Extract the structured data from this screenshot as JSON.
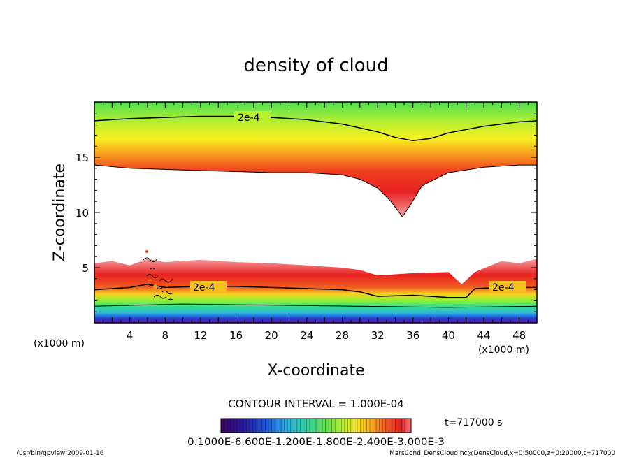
{
  "chart_data": {
    "type": "heatmap",
    "title": "density of cloud",
    "xlabel": "X-coordinate",
    "ylabel": "Z-coordinate",
    "x_unit": "(x1000 m)",
    "z_unit": "(x1000 m)",
    "xlim": [
      0,
      50
    ],
    "ylim": [
      0,
      20
    ],
    "x_ticks": [
      4,
      8,
      12,
      16,
      20,
      24,
      28,
      32,
      36,
      40,
      44,
      48
    ],
    "y_ticks": [
      5,
      10,
      15
    ],
    "contour_labels": [
      "2e-4",
      "2e-4",
      "2e-4"
    ],
    "contour_interval": "CONTOUR INTERVAL = 1.000E-04",
    "time": "t=717000 s",
    "colorbar_labels_text": "0.1000E-6.600E-1.200E-1.800E-2.400E-3.000E-3",
    "colorbar_values": [
      0.1,
      0.6,
      1.2,
      1.8,
      2.4,
      3.0
    ],
    "colorbar_unit": "E-03",
    "colorbar_colors": [
      "#3a0060",
      "#2a1aa0",
      "#2060e0",
      "#30b0e0",
      "#30d0a0",
      "#50e050",
      "#b0f030",
      "#f0f020",
      "#f8b020",
      "#f06020",
      "#e82020",
      "#f08080"
    ],
    "upper_band_top": [
      [
        0,
        18.3
      ],
      [
        4,
        18.5
      ],
      [
        8,
        18.6
      ],
      [
        12,
        18.7
      ],
      [
        16,
        18.7
      ],
      [
        20,
        18.6
      ],
      [
        24,
        18.4
      ],
      [
        28,
        18.0
      ],
      [
        32,
        17.3
      ],
      [
        34,
        16.8
      ],
      [
        36,
        16.5
      ],
      [
        38,
        16.7
      ],
      [
        40,
        17.2
      ],
      [
        44,
        17.8
      ],
      [
        48,
        18.2
      ],
      [
        50,
        18.3
      ]
    ],
    "upper_band_bottom": [
      [
        0,
        14.3
      ],
      [
        4,
        14.0
      ],
      [
        8,
        13.9
      ],
      [
        12,
        13.8
      ],
      [
        16,
        13.7
      ],
      [
        20,
        13.6
      ],
      [
        24,
        13.6
      ],
      [
        28,
        13.4
      ],
      [
        30,
        13.0
      ],
      [
        32,
        12.2
      ],
      [
        33.5,
        11.0
      ],
      [
        34.8,
        9.6
      ],
      [
        35.8,
        10.8
      ],
      [
        37,
        12.4
      ],
      [
        40,
        13.6
      ],
      [
        44,
        14.1
      ],
      [
        48,
        14.3
      ],
      [
        50,
        14.3
      ]
    ],
    "lower_band_top": [
      [
        0,
        5.4
      ],
      [
        2,
        5.6
      ],
      [
        4,
        5.2
      ],
      [
        6,
        5.8
      ],
      [
        8,
        5.5
      ],
      [
        10,
        5.6
      ],
      [
        12,
        5.7
      ],
      [
        16,
        5.5
      ],
      [
        20,
        5.4
      ],
      [
        24,
        5.2
      ],
      [
        28,
        5.0
      ],
      [
        30,
        4.8
      ],
      [
        32,
        4.3
      ],
      [
        34,
        4.4
      ],
      [
        36,
        4.5
      ],
      [
        40,
        4.6
      ],
      [
        41.5,
        3.5
      ],
      [
        43,
        4.6
      ],
      [
        46,
        5.6
      ],
      [
        48,
        5.4
      ],
      [
        50,
        5.8
      ]
    ],
    "lower_2e4_contour": [
      [
        0,
        3.0
      ],
      [
        4,
        3.2
      ],
      [
        6,
        3.5
      ],
      [
        8,
        3.2
      ],
      [
        12,
        3.3
      ],
      [
        16,
        3.3
      ],
      [
        20,
        3.2
      ],
      [
        24,
        3.1
      ],
      [
        28,
        3.0
      ],
      [
        30,
        2.8
      ],
      [
        32,
        2.4
      ],
      [
        36,
        2.5
      ],
      [
        40,
        2.3
      ],
      [
        42,
        2.3
      ],
      [
        43,
        3.1
      ],
      [
        46,
        3.2
      ],
      [
        50,
        3.2
      ]
    ],
    "ground_layer_top": [
      [
        0,
        1.5
      ],
      [
        10,
        1.7
      ],
      [
        20,
        1.6
      ],
      [
        30,
        1.5
      ],
      [
        40,
        1.4
      ],
      [
        50,
        1.5
      ]
    ]
  },
  "footer": {
    "left": "/usr/bin/gpview   2009-01-16",
    "right": "MarsCond_DensCloud.nc@DensCloud,x=0:50000,z=0:20000,t=717000"
  }
}
